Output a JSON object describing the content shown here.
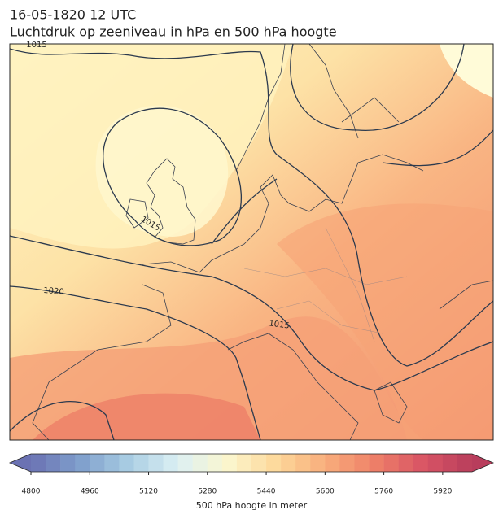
{
  "header": {
    "title": "16-05-1820 12 UTC",
    "subtitle": "Luchtdruk op zeeniveau in hPa en 500 hPa hoogte"
  },
  "map": {
    "contour_labels": [
      1015,
      1015,
      1020,
      1015
    ]
  },
  "colorbar": {
    "label": "500 hPa hoogte in meter",
    "range": [
      4800,
      6000
    ],
    "step": 40,
    "ticks": [
      4800,
      4960,
      5120,
      5280,
      5440,
      5600,
      5760,
      5920
    ],
    "colors": [
      "#6b72b3",
      "#7f9fcc",
      "#a9cde3",
      "#dcf0f3",
      "#fbf7cf",
      "#fdd89a",
      "#f8ae7c",
      "#ee8068",
      "#d95565",
      "#b83d5c"
    ]
  }
}
